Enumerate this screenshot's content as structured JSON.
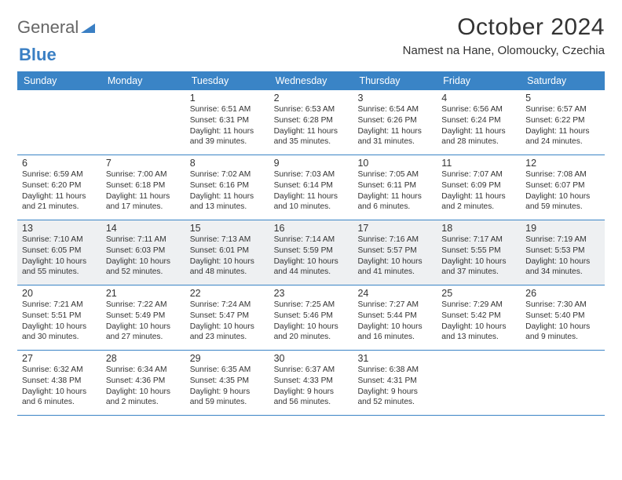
{
  "brand": {
    "part1": "General",
    "part2": "Blue"
  },
  "title": "October 2024",
  "location": "Namest na Hane, Olomoucky, Czechia",
  "colors": {
    "header_bg": "#3a84c6",
    "header_text": "#ffffff",
    "row_border": "#3a84c6",
    "highlight_bg": "#eef0f2",
    "text": "#333333",
    "logo_gray": "#666666",
    "logo_blue": "#3a7fc4",
    "page_bg": "#ffffff"
  },
  "day_labels": [
    "Sunday",
    "Monday",
    "Tuesday",
    "Wednesday",
    "Thursday",
    "Friday",
    "Saturday"
  ],
  "weeks": [
    [
      {
        "num": "",
        "lines": []
      },
      {
        "num": "",
        "lines": []
      },
      {
        "num": "1",
        "lines": [
          "Sunrise: 6:51 AM",
          "Sunset: 6:31 PM",
          "Daylight: 11 hours",
          "and 39 minutes."
        ]
      },
      {
        "num": "2",
        "lines": [
          "Sunrise: 6:53 AM",
          "Sunset: 6:28 PM",
          "Daylight: 11 hours",
          "and 35 minutes."
        ]
      },
      {
        "num": "3",
        "lines": [
          "Sunrise: 6:54 AM",
          "Sunset: 6:26 PM",
          "Daylight: 11 hours",
          "and 31 minutes."
        ]
      },
      {
        "num": "4",
        "lines": [
          "Sunrise: 6:56 AM",
          "Sunset: 6:24 PM",
          "Daylight: 11 hours",
          "and 28 minutes."
        ]
      },
      {
        "num": "5",
        "lines": [
          "Sunrise: 6:57 AM",
          "Sunset: 6:22 PM",
          "Daylight: 11 hours",
          "and 24 minutes."
        ]
      }
    ],
    [
      {
        "num": "6",
        "lines": [
          "Sunrise: 6:59 AM",
          "Sunset: 6:20 PM",
          "Daylight: 11 hours",
          "and 21 minutes."
        ]
      },
      {
        "num": "7",
        "lines": [
          "Sunrise: 7:00 AM",
          "Sunset: 6:18 PM",
          "Daylight: 11 hours",
          "and 17 minutes."
        ]
      },
      {
        "num": "8",
        "lines": [
          "Sunrise: 7:02 AM",
          "Sunset: 6:16 PM",
          "Daylight: 11 hours",
          "and 13 minutes."
        ]
      },
      {
        "num": "9",
        "lines": [
          "Sunrise: 7:03 AM",
          "Sunset: 6:14 PM",
          "Daylight: 11 hours",
          "and 10 minutes."
        ]
      },
      {
        "num": "10",
        "lines": [
          "Sunrise: 7:05 AM",
          "Sunset: 6:11 PM",
          "Daylight: 11 hours",
          "and 6 minutes."
        ]
      },
      {
        "num": "11",
        "lines": [
          "Sunrise: 7:07 AM",
          "Sunset: 6:09 PM",
          "Daylight: 11 hours",
          "and 2 minutes."
        ]
      },
      {
        "num": "12",
        "lines": [
          "Sunrise: 7:08 AM",
          "Sunset: 6:07 PM",
          "Daylight: 10 hours",
          "and 59 minutes."
        ]
      }
    ],
    [
      {
        "num": "13",
        "lines": [
          "Sunrise: 7:10 AM",
          "Sunset: 6:05 PM",
          "Daylight: 10 hours",
          "and 55 minutes."
        ]
      },
      {
        "num": "14",
        "lines": [
          "Sunrise: 7:11 AM",
          "Sunset: 6:03 PM",
          "Daylight: 10 hours",
          "and 52 minutes."
        ]
      },
      {
        "num": "15",
        "lines": [
          "Sunrise: 7:13 AM",
          "Sunset: 6:01 PM",
          "Daylight: 10 hours",
          "and 48 minutes."
        ]
      },
      {
        "num": "16",
        "lines": [
          "Sunrise: 7:14 AM",
          "Sunset: 5:59 PM",
          "Daylight: 10 hours",
          "and 44 minutes."
        ]
      },
      {
        "num": "17",
        "lines": [
          "Sunrise: 7:16 AM",
          "Sunset: 5:57 PM",
          "Daylight: 10 hours",
          "and 41 minutes."
        ]
      },
      {
        "num": "18",
        "lines": [
          "Sunrise: 7:17 AM",
          "Sunset: 5:55 PM",
          "Daylight: 10 hours",
          "and 37 minutes."
        ]
      },
      {
        "num": "19",
        "lines": [
          "Sunrise: 7:19 AM",
          "Sunset: 5:53 PM",
          "Daylight: 10 hours",
          "and 34 minutes."
        ]
      }
    ],
    [
      {
        "num": "20",
        "lines": [
          "Sunrise: 7:21 AM",
          "Sunset: 5:51 PM",
          "Daylight: 10 hours",
          "and 30 minutes."
        ]
      },
      {
        "num": "21",
        "lines": [
          "Sunrise: 7:22 AM",
          "Sunset: 5:49 PM",
          "Daylight: 10 hours",
          "and 27 minutes."
        ]
      },
      {
        "num": "22",
        "lines": [
          "Sunrise: 7:24 AM",
          "Sunset: 5:47 PM",
          "Daylight: 10 hours",
          "and 23 minutes."
        ]
      },
      {
        "num": "23",
        "lines": [
          "Sunrise: 7:25 AM",
          "Sunset: 5:46 PM",
          "Daylight: 10 hours",
          "and 20 minutes."
        ]
      },
      {
        "num": "24",
        "lines": [
          "Sunrise: 7:27 AM",
          "Sunset: 5:44 PM",
          "Daylight: 10 hours",
          "and 16 minutes."
        ]
      },
      {
        "num": "25",
        "lines": [
          "Sunrise: 7:29 AM",
          "Sunset: 5:42 PM",
          "Daylight: 10 hours",
          "and 13 minutes."
        ]
      },
      {
        "num": "26",
        "lines": [
          "Sunrise: 7:30 AM",
          "Sunset: 5:40 PM",
          "Daylight: 10 hours",
          "and 9 minutes."
        ]
      }
    ],
    [
      {
        "num": "27",
        "lines": [
          "Sunrise: 6:32 AM",
          "Sunset: 4:38 PM",
          "Daylight: 10 hours",
          "and 6 minutes."
        ]
      },
      {
        "num": "28",
        "lines": [
          "Sunrise: 6:34 AM",
          "Sunset: 4:36 PM",
          "Daylight: 10 hours",
          "and 2 minutes."
        ]
      },
      {
        "num": "29",
        "lines": [
          "Sunrise: 6:35 AM",
          "Sunset: 4:35 PM",
          "Daylight: 9 hours",
          "and 59 minutes."
        ]
      },
      {
        "num": "30",
        "lines": [
          "Sunrise: 6:37 AM",
          "Sunset: 4:33 PM",
          "Daylight: 9 hours",
          "and 56 minutes."
        ]
      },
      {
        "num": "31",
        "lines": [
          "Sunrise: 6:38 AM",
          "Sunset: 4:31 PM",
          "Daylight: 9 hours",
          "and 52 minutes."
        ]
      },
      {
        "num": "",
        "lines": []
      },
      {
        "num": "",
        "lines": []
      }
    ]
  ],
  "highlight_rows": [
    2
  ]
}
